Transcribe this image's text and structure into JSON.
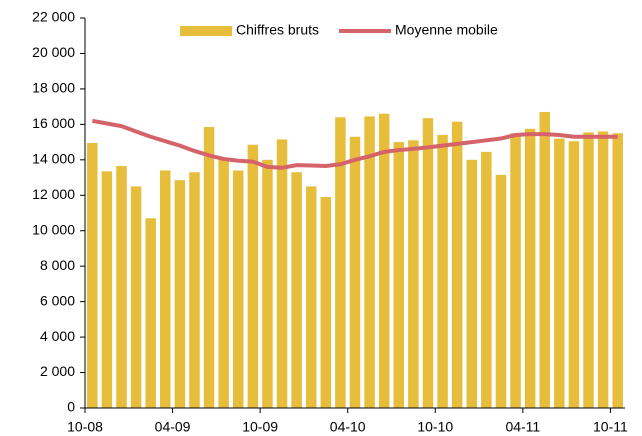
{
  "chart_data": {
    "type": "bar",
    "categories": [
      "10-08",
      null,
      null,
      null,
      null,
      null,
      "04-09",
      null,
      null,
      null,
      null,
      null,
      "10-09",
      null,
      null,
      null,
      null,
      null,
      "04-10",
      null,
      null,
      null,
      null,
      null,
      "10-10",
      null,
      null,
      null,
      null,
      null,
      "04-11",
      null,
      null,
      null,
      null,
      null,
      "10-11"
    ],
    "series": [
      {
        "name": "Chiffres bruts",
        "type": "bar",
        "color": "#e6be3c",
        "values": [
          14950,
          13350,
          13650,
          12500,
          10700,
          13400,
          12850,
          13300,
          15850,
          14000,
          13400,
          14850,
          14000,
          15150,
          13300,
          12500,
          11900,
          16400,
          15300,
          16450,
          16600,
          15000,
          15100,
          16350,
          15400,
          16150,
          14000,
          14450,
          13150,
          15500,
          15750,
          16700,
          15200,
          15050,
          15550,
          15600,
          15500
        ]
      },
      {
        "name": "Moyenne mobile",
        "type": "line",
        "color": "#d4646a",
        "values": [
          16200,
          16050,
          15900,
          15600,
          15300,
          15050,
          14800,
          14500,
          14250,
          14050,
          13950,
          13900,
          13600,
          13550,
          13700,
          13680,
          13650,
          13750,
          14000,
          14200,
          14450,
          14550,
          14620,
          14700,
          14800,
          14900,
          15000,
          15100,
          15200,
          15400,
          15450,
          15450,
          15400,
          15300,
          15300,
          15300,
          15300
        ]
      }
    ],
    "ylim": [
      0,
      22000
    ],
    "yticks": [
      0,
      {
        "value": 2000,
        "label": "2 000"
      },
      {
        "value": 4000,
        "label": "4 000"
      },
      {
        "value": 6000,
        "label": "6 000"
      },
      {
        "value": 8000,
        "label": "8 000"
      },
      {
        "value": 10000,
        "label": "10 000"
      },
      {
        "value": 12000,
        "label": "12 000"
      },
      {
        "value": 14000,
        "label": "14 000"
      },
      {
        "value": 16000,
        "label": "16 000"
      },
      {
        "value": 18000,
        "label": "18 000"
      },
      {
        "value": 20000,
        "label": "20 000"
      },
      {
        "value": 22000,
        "label": "22 000"
      }
    ],
    "grid": false,
    "legend": "top"
  }
}
